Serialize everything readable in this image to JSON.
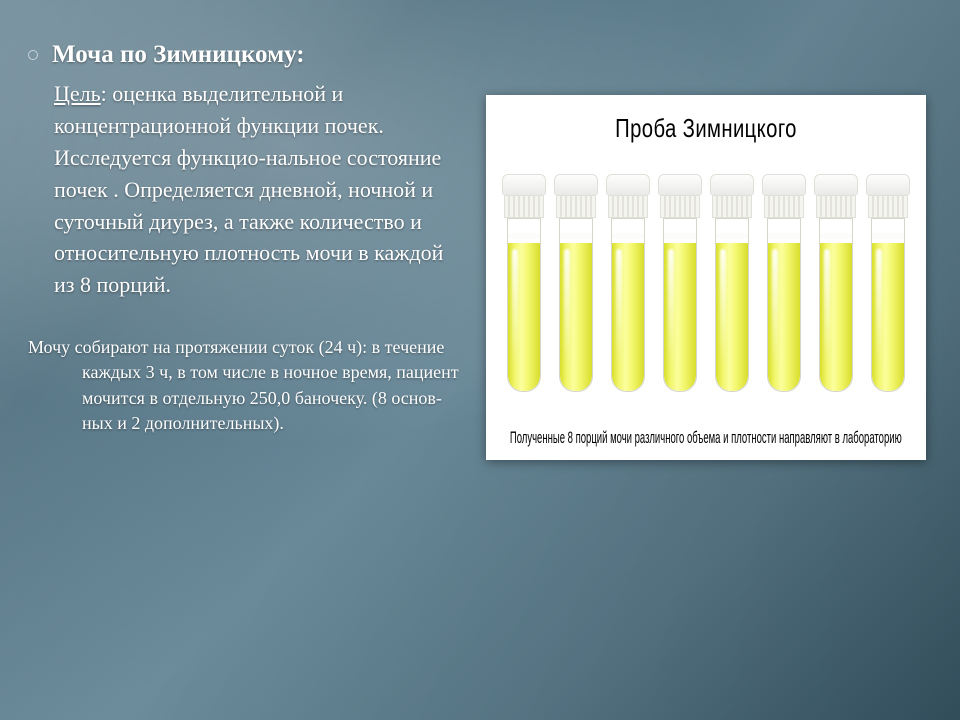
{
  "slide": {
    "title": "Моча по Зимницкому:",
    "goal_label": "Цель",
    "goal_text": ": оценка выделительной и концентрационной функции почек.  Исследуется функцио-нальное состояние почек . Определяется дневной, ночной  и  суточный диурез, а также количество и относительную плотность мочи в каждой из 8 порций.",
    "procedure_text": "Мочу собирают на протяжении суток (24 ч): в течение каждых 3 ч, в том числе в ночное время, пациент мочится в отдельную 250,0 баночеку.  (8 основ-ных и 2 дополнительных)."
  },
  "panel": {
    "title": "Проба Зимницкого",
    "caption": "Полученные 8 порций мочи различного объема и плотности направляют в лабораторию",
    "tube_count": 8,
    "fluid_color_stops": [
      "#d8df2a",
      "#f1f56a",
      "#fbfe9d",
      "#f4f770",
      "#d8de2e"
    ],
    "background_color": "#ffffff",
    "title_fontsize": 26,
    "caption_fontsize": 17
  },
  "style": {
    "bg_gradient": [
      "#5a7a8a",
      "#4a6b7c",
      "#6a8a9a",
      "#5a7a8a",
      "#3a5a6a"
    ],
    "text_color": "#ffffff",
    "title_fontsize": 25,
    "body_fontsize": 22,
    "body2_fontsize": 18
  }
}
